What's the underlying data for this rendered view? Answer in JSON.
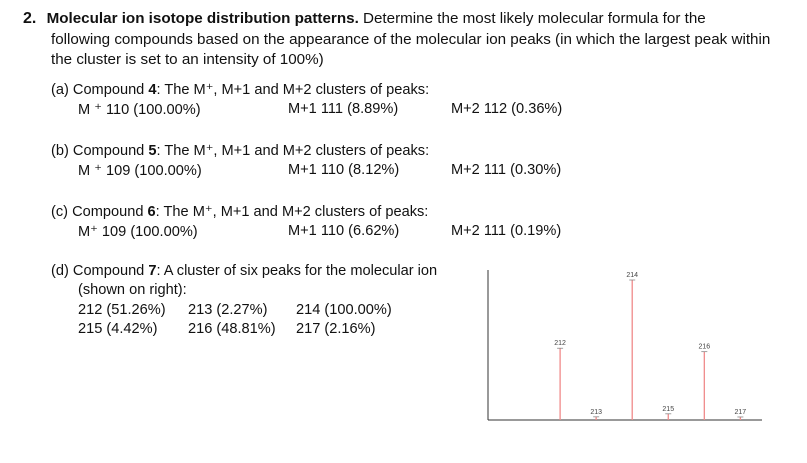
{
  "question": {
    "number": "2.",
    "title": "Molecular ion isotope distribution patterns.",
    "line1_rest": " Determine the most likely molecular formula for the",
    "line2": "following compounds based on the appearance of the molecular ion peaks (in which the largest peak within",
    "line3": "the cluster is set to an intensity of 100%)"
  },
  "parts": [
    {
      "label": "(a)",
      "compound_prefix": "Compound ",
      "compound_number": "4",
      "description": ": The M⁺, M+1 and M+2 clusters of peaks:",
      "m": "M ⁺ 110 (100.00%)",
      "m1": "M+1 111 (8.89%)",
      "m2": "M+2 112 (0.36%)"
    },
    {
      "label": "(b)",
      "compound_prefix": "Compound ",
      "compound_number": "5",
      "description": ": The M⁺, M+1 and M+2 clusters of peaks:",
      "m": "M ⁺ 109 (100.00%)",
      "m1": "M+1 110 (8.12%)",
      "m2": "M+2 111 (0.30%)"
    },
    {
      "label": "(c)",
      "compound_prefix": "Compound ",
      "compound_number": "6",
      "description": ": The M⁺, M+1 and M+2 clusters of peaks:",
      "m": "M⁺ 109 (100.00%)",
      "m1": "M+1 110 (6.62%)",
      "m2": "M+2 111 (0.19%)"
    }
  ],
  "part_d": {
    "label": "(d)",
    "compound_prefix": "Compound ",
    "compound_number": "7",
    "description": ": A cluster of six peaks for the molecular ion",
    "description2": "(shown on right):",
    "peaks_row1": [
      "212 (51.26%)",
      "213 (2.27%)",
      "214 (100.00%)"
    ],
    "peaks_row2": [
      "215 (4.42%)",
      "216 (48.81%)",
      "217 (2.16%)"
    ]
  },
  "colors": {
    "peak": "#f08a8a",
    "axis": "#333333"
  },
  "chart_data": {
    "type": "bar",
    "categories": [
      "212",
      "213",
      "214",
      "215",
      "216",
      "217"
    ],
    "values": [
      51.26,
      2.27,
      100.0,
      4.42,
      48.81,
      2.16
    ],
    "x": [
      212,
      213,
      214,
      215,
      216,
      217
    ],
    "title": "",
    "xlabel": "",
    "ylabel": "",
    "ylim": [
      0,
      100
    ],
    "xlim": [
      210,
      217.6
    ],
    "grid": false,
    "legend": "none"
  }
}
